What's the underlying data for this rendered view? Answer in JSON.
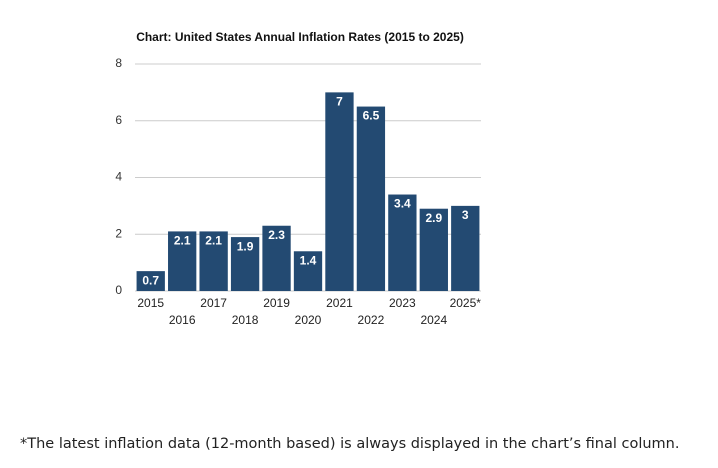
{
  "chart_data": {
    "type": "bar",
    "title": "Chart: United States Annual Inflation Rates (2015 to 2025)",
    "categories": [
      "2015",
      "2016",
      "2017",
      "2018",
      "2019",
      "2020",
      "2021",
      "2022",
      "2023",
      "2024",
      "2025*"
    ],
    "values": [
      0.7,
      2.1,
      2.1,
      1.9,
      2.3,
      1.4,
      7,
      6.5,
      3.4,
      2.9,
      3
    ],
    "color": "#234a72",
    "ylim": [
      0,
      8
    ],
    "yticks": [
      0,
      2,
      4,
      6,
      8
    ],
    "grid": true
  },
  "footnote": "*The latest inflation data (12-month based) is always displayed in the chart’s final column."
}
